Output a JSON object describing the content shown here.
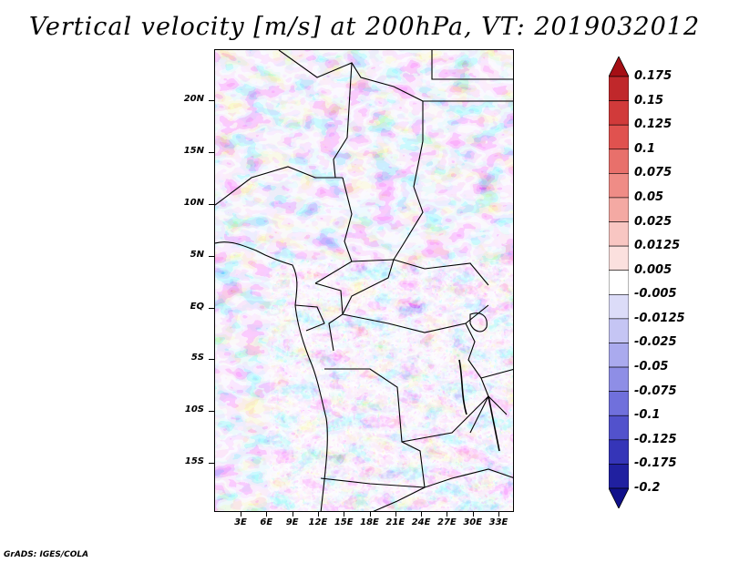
{
  "title": "Vertical velocity [m/s] at 200hPa, VT: 2019032012",
  "credit": "GrADS: IGES/COLA",
  "map": {
    "lat_labels": [
      "20N",
      "15N",
      "10N",
      "5N",
      "EQ",
      "5S",
      "10S",
      "15S"
    ],
    "lon_labels": [
      "3E",
      "6E",
      "9E",
      "12E",
      "15E",
      "18E",
      "21E",
      "24E",
      "27E",
      "30E",
      "33E"
    ]
  },
  "colorbar": {
    "labels": [
      "0.175",
      "0.15",
      "0.125",
      "0.1",
      "0.075",
      "0.05",
      "0.025",
      "0.0125",
      "0.005",
      "-0.005",
      "-0.0125",
      "-0.025",
      "-0.05",
      "-0.075",
      "-0.1",
      "-0.125",
      "-0.175",
      "-0.2"
    ],
    "colors": [
      "#a50f15",
      "#c0282b",
      "#d13a3a",
      "#e0524f",
      "#e8706b",
      "#ef8c86",
      "#f4a9a3",
      "#f8c6c2",
      "#fbe0de",
      "#ffffff",
      "#dcdcf8",
      "#c5c5f4",
      "#aaaaee",
      "#8e8ee6",
      "#7070dc",
      "#5252cc",
      "#3535b8",
      "#2020a0",
      "#10108a"
    ]
  }
}
